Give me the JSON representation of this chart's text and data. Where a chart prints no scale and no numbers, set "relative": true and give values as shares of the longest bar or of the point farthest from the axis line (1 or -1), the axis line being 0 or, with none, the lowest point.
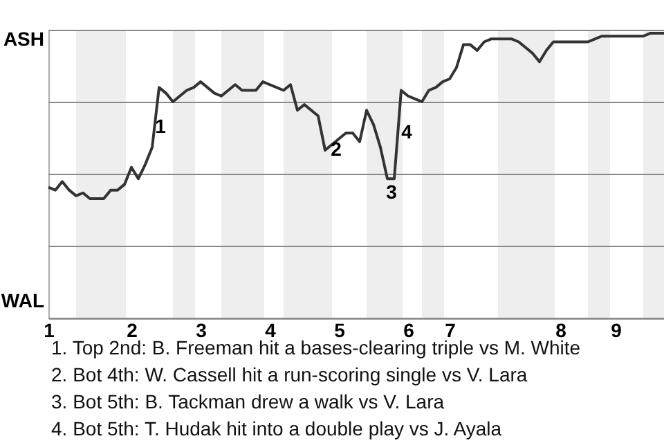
{
  "chart_data": {
    "type": "line",
    "relative": true,
    "categories": [
      "1",
      null,
      null,
      null,
      null,
      null,
      null,
      null,
      null,
      null,
      null,
      null,
      "2",
      null,
      null,
      null,
      null,
      null,
      null,
      null,
      null,
      null,
      "3",
      null,
      null,
      null,
      null,
      null,
      null,
      null,
      null,
      null,
      "4",
      null,
      null,
      null,
      null,
      null,
      null,
      null,
      null,
      null,
      "5",
      null,
      null,
      null,
      null,
      null,
      null,
      null,
      null,
      null,
      "6",
      null,
      null,
      null,
      null,
      null,
      "7",
      null,
      null,
      null,
      null,
      null,
      null,
      null,
      null,
      null,
      null,
      null,
      null,
      null,
      null,
      null,
      "8",
      null,
      null,
      null,
      null,
      null,
      null,
      null,
      "9",
      null,
      null,
      null,
      null,
      null,
      null,
      null
    ],
    "grid": "y",
    "marker": "none",
    "line_style": "solid",
    "series": [
      {
        "color": "#333333",
        "values": [
          0.46,
          0.45,
          0.48,
          0.45,
          0.43,
          0.44,
          0.42,
          0.42,
          0.42,
          0.45,
          0.45,
          0.47,
          0.53,
          0.49,
          0.54,
          0.6,
          0.81,
          0.79,
          0.76,
          0.78,
          0.8,
          0.81,
          0.83,
          0.81,
          0.79,
          0.78,
          0.8,
          0.82,
          0.8,
          0.8,
          0.8,
          0.83,
          0.82,
          0.81,
          0.8,
          0.82,
          0.73,
          0.75,
          0.73,
          0.71,
          0.59,
          0.61,
          0.63,
          0.65,
          0.65,
          0.62,
          0.73,
          0.68,
          0.6,
          0.49,
          0.49,
          0.8,
          0.78,
          0.77,
          0.76,
          0.8,
          0.81,
          0.83,
          0.84,
          0.88,
          0.96,
          0.96,
          0.94,
          0.97,
          0.98,
          0.98,
          0.98,
          0.98,
          0.97,
          0.95,
          0.93,
          0.9,
          0.94,
          0.97,
          0.97,
          0.97,
          0.97,
          0.97,
          0.97,
          0.98,
          0.99,
          0.99,
          0.99,
          0.99,
          0.99,
          0.99,
          0.99,
          1,
          1,
          1
        ]
      }
    ],
    "annotations": [
      "1",
      "2",
      "3",
      "4",
      "ASH",
      "WAL",
      "1. Top 2nd: B. Freeman hit a bases-clearing triple vs M. White",
      "2. Bot 4th: W. Cassell hit a run-scoring single vs V. Lara",
      "3. Bot 5th: B. Tackman drew a walk vs V. Lara",
      "4. Bot 5th: T. Hudak hit into a double play vs J. Ayala"
    ]
  }
}
